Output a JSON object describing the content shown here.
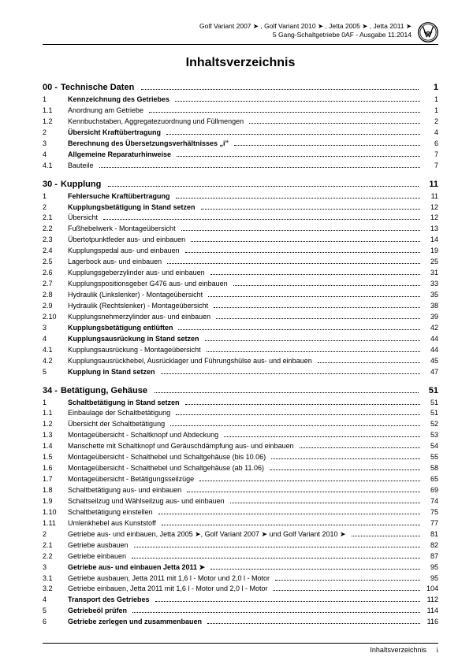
{
  "header": {
    "line1": "Golf Variant 2007 ➤ , Golf Variant 2010 ➤ , Jetta 2005 ➤ , Jetta 2011 ➤",
    "line2": "5 Gang-Schaltgetriebe 0AF - Ausgabe 11.2014"
  },
  "title": "Inhaltsverzeichnis",
  "sections": [
    {
      "code": "00",
      "title": "Technische Daten",
      "page": "1",
      "entries": [
        {
          "n": "1",
          "t": "Kennzeichnung des Getriebes",
          "p": "1",
          "b": true
        },
        {
          "n": "1.1",
          "t": "Anordnung am Getriebe",
          "p": "1"
        },
        {
          "n": "1.2",
          "t": "Kennbuchstaben, Aggregatezuordnung und Füllmengen",
          "p": "2"
        },
        {
          "n": "2",
          "t": "Übersicht Kraftübertragung",
          "p": "4",
          "b": true
        },
        {
          "n": "3",
          "t": "Berechnung des Übersetzungsverhältnisses „i”",
          "p": "6",
          "b": true
        },
        {
          "n": "4",
          "t": "Allgemeine Reparaturhinweise",
          "p": "7",
          "b": true
        },
        {
          "n": "4.1",
          "t": "Bauteile",
          "p": "7"
        }
      ]
    },
    {
      "code": "30",
      "title": "Kupplung",
      "page": "11",
      "entries": [
        {
          "n": "1",
          "t": "Fehlersuche Kraftübertragung",
          "p": "11",
          "b": true
        },
        {
          "n": "2",
          "t": "Kupplungsbetätigung in Stand setzen",
          "p": "12",
          "b": true
        },
        {
          "n": "2.1",
          "t": "Übersicht",
          "p": "12"
        },
        {
          "n": "2.2",
          "t": "Fußhebelwerk - Montageübersicht",
          "p": "13"
        },
        {
          "n": "2.3",
          "t": "Übertotpunktfeder aus- und einbauen",
          "p": "14"
        },
        {
          "n": "2.4",
          "t": "Kupplungspedal aus- und einbauen",
          "p": "19"
        },
        {
          "n": "2.5",
          "t": "Lagerbock aus- und einbauen",
          "p": "25"
        },
        {
          "n": "2.6",
          "t": "Kupplungsgeberzylinder aus- und einbauen",
          "p": "31"
        },
        {
          "n": "2.7",
          "t": "Kupplungspositionsgeber G476 aus- und einbauen",
          "p": "33"
        },
        {
          "n": "2.8",
          "t": "Hydraulik (Linkslenker) - Montageübersicht",
          "p": "35"
        },
        {
          "n": "2.9",
          "t": "Hydraulik (Rechtslenker) - Montageübersicht",
          "p": "38"
        },
        {
          "n": "2.10",
          "t": "Kupplungsnehmerzylinder aus- und einbauen",
          "p": "39"
        },
        {
          "n": "3",
          "t": "Kupplungsbetätigung entlüften",
          "p": "42",
          "b": true
        },
        {
          "n": "4",
          "t": "Kupplungsausrückung in Stand setzen",
          "p": "44",
          "b": true
        },
        {
          "n": "4.1",
          "t": "Kupplungsausrückung - Montageübersicht",
          "p": "44"
        },
        {
          "n": "4.2",
          "t": "Kupplungsausrückhebel, Ausrücklager und Führungshülse aus- und einbauen",
          "p": "45"
        },
        {
          "n": "5",
          "t": "Kupplung in Stand setzen",
          "p": "47",
          "b": true
        }
      ]
    },
    {
      "code": "34",
      "title": "Betätigung, Gehäuse",
      "page": "51",
      "entries": [
        {
          "n": "1",
          "t": "Schaltbetätigung in Stand setzen",
          "p": "51",
          "b": true
        },
        {
          "n": "1.1",
          "t": "Einbaulage der Schaltbetätigung",
          "p": "51"
        },
        {
          "n": "1.2",
          "t": "Übersicht der Schaltbetätigung",
          "p": "52"
        },
        {
          "n": "1.3",
          "t": "Montageübersicht - Schaltknopf und Abdeckung",
          "p": "53"
        },
        {
          "n": "1.4",
          "t": "Manschette mit Schaltknopf und Geräuschdämpfung aus- und einbauen",
          "p": "54"
        },
        {
          "n": "1.5",
          "t": "Montageübersicht - Schalthebel und Schaltgehäuse (bis 10.06)",
          "p": "55"
        },
        {
          "n": "1.6",
          "t": "Montageübersicht - Schalthebel und Schaltgehäuse (ab 11.06)",
          "p": "58"
        },
        {
          "n": "1.7",
          "t": "Montageübersicht - Betätigungsseilzüge",
          "p": "65"
        },
        {
          "n": "1.8",
          "t": "Schaltbetätigung aus- und einbauen",
          "p": "69"
        },
        {
          "n": "1.9",
          "t": "Schaltseilzug und Wählseilzug aus- und einbauen",
          "p": "74"
        },
        {
          "n": "1.10",
          "t": "Schaltbetätigung einstellen",
          "p": "75"
        },
        {
          "n": "1.11",
          "t": "Umlenkhebel aus Kunststoff",
          "p": "77"
        },
        {
          "n": "2",
          "t": "Getriebe aus- und einbauen, Jetta 2005 ➤, Golf Variant 2007 ➤ und Golf Variant 2010 ➤",
          "p": "81",
          "b": true,
          "wrap": true
        },
        {
          "n": "2.1",
          "t": "Getriebe ausbauen",
          "p": "82"
        },
        {
          "n": "2.2",
          "t": "Getriebe einbauen",
          "p": "87"
        },
        {
          "n": "3",
          "t": "Getriebe aus- und einbauen Jetta 2011 ➤",
          "p": "95",
          "b": true
        },
        {
          "n": "3.1",
          "t": "Getriebe ausbauen, Jetta 2011 mit 1,6 l - Motor und 2,0 l - Motor",
          "p": "95"
        },
        {
          "n": "3.2",
          "t": "Getriebe einbauen, Jetta 2011 mit 1,6 l - Motor und 2,0 l - Motor",
          "p": "104"
        },
        {
          "n": "4",
          "t": "Transport des Getriebes",
          "p": "112",
          "b": true
        },
        {
          "n": "5",
          "t": "Getriebeöl prüfen",
          "p": "114",
          "b": true
        },
        {
          "n": "6",
          "t": "Getriebe zerlegen und zusammenbauen",
          "p": "116",
          "b": true
        }
      ]
    }
  ],
  "footer": {
    "label": "Inhaltsverzeichnis",
    "page": "i"
  },
  "colors": {
    "text": "#000000",
    "background": "#ffffff",
    "rule": "#000000"
  }
}
